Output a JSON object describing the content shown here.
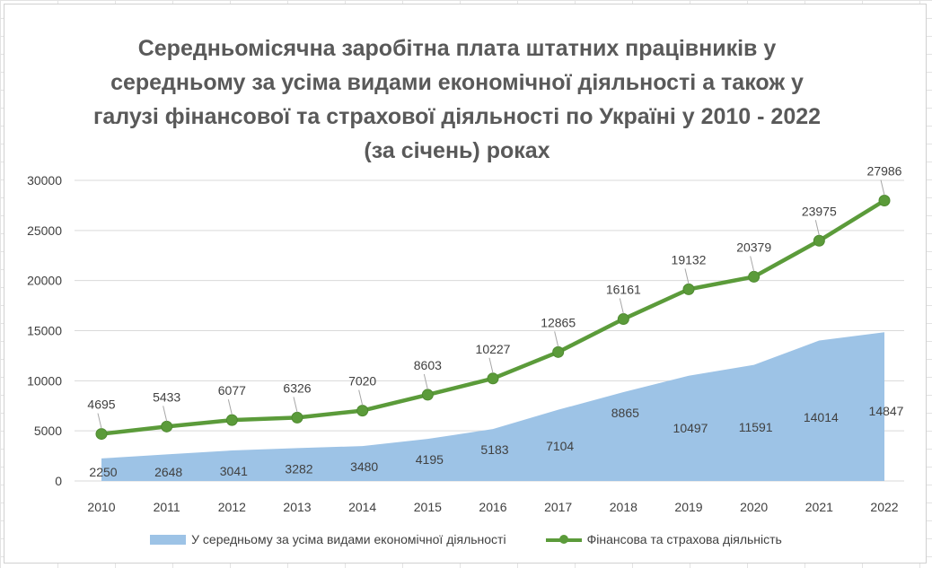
{
  "chart_data": {
    "type": "area+line",
    "title": "Середньомісячна заробітна плата штатних працівників у середньому за усіма видами економічної діяльності а також у галузі фінансової та страхової діяльності по Україні у 2010 - 2022 (за січень) роках",
    "categories": [
      "2010",
      "2011",
      "2012",
      "2013",
      "2014",
      "2015",
      "2016",
      "2017",
      "2018",
      "2019",
      "2020",
      "2021",
      "2022"
    ],
    "series": [
      {
        "name": "У середньому за усіма видами економічної діяльності",
        "type": "area",
        "color": "#9dc3e6",
        "values": [
          2250,
          2648,
          3041,
          3282,
          3480,
          4195,
          5183,
          7104,
          8865,
          10497,
          11591,
          14014,
          14847
        ]
      },
      {
        "name": "Фінансова та страхова діяльність",
        "type": "line",
        "color": "#5b9b3a",
        "values": [
          4695,
          5433,
          6077,
          6326,
          7020,
          8603,
          10227,
          12865,
          16161,
          19132,
          20379,
          23975,
          27986
        ]
      }
    ],
    "y_ticks": [
      "0",
      "5000",
      "10000",
      "15000",
      "20000",
      "25000",
      "30000"
    ],
    "ylim": [
      0,
      30000
    ],
    "grid": true,
    "legend": "bottom"
  }
}
